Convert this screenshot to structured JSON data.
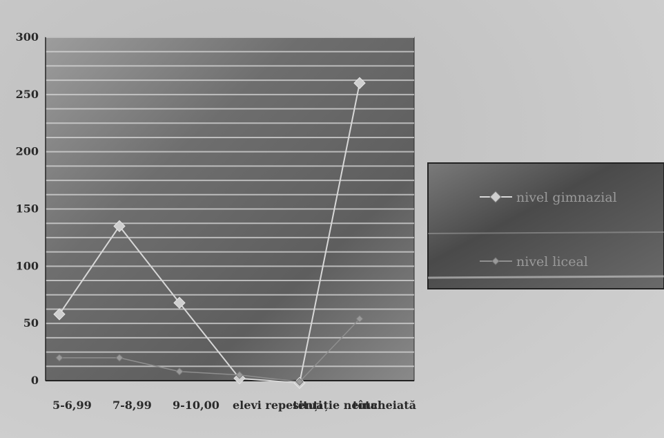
{
  "chart_data": {
    "type": "line",
    "title": "",
    "xlabel": "",
    "ylabel": "",
    "categories": [
      "5-6,99",
      "7-8,99",
      "9-10,00",
      "elevi repetenți",
      "situație neîncheiată",
      "total"
    ],
    "ylim": [
      0,
      300
    ],
    "yticks": [
      0,
      50,
      100,
      150,
      200,
      250,
      300
    ],
    "grid": true,
    "legend_position": "right",
    "series": [
      {
        "name": "nivel gimnazial",
        "values": [
          58,
          135,
          68,
          2,
          -2,
          260
        ],
        "color": "#d8d8d8"
      },
      {
        "name": "nivel liceal",
        "values": [
          20,
          20,
          8,
          5,
          -1,
          54
        ],
        "color": "#8f8f8f"
      }
    ]
  }
}
